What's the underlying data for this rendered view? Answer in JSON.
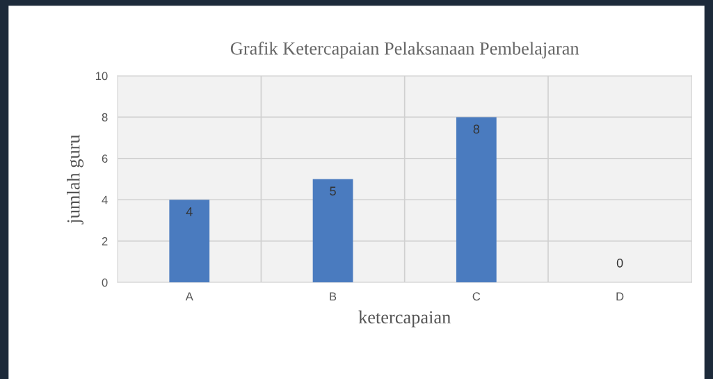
{
  "chart_data": {
    "type": "bar",
    "title": "Grafik Ketercapaian Pelaksanaan Pembelajaran",
    "xlabel": "ketercapaian",
    "ylabel": "jumlah guru",
    "categories": [
      "A",
      "B",
      "C",
      "D"
    ],
    "values": [
      4,
      5,
      8,
      0
    ],
    "color": "#4a7bbf",
    "ylim": [
      0,
      10
    ],
    "yticks": [
      0,
      2,
      4,
      6,
      8,
      10
    ],
    "grid": true,
    "data_labels": true
  }
}
